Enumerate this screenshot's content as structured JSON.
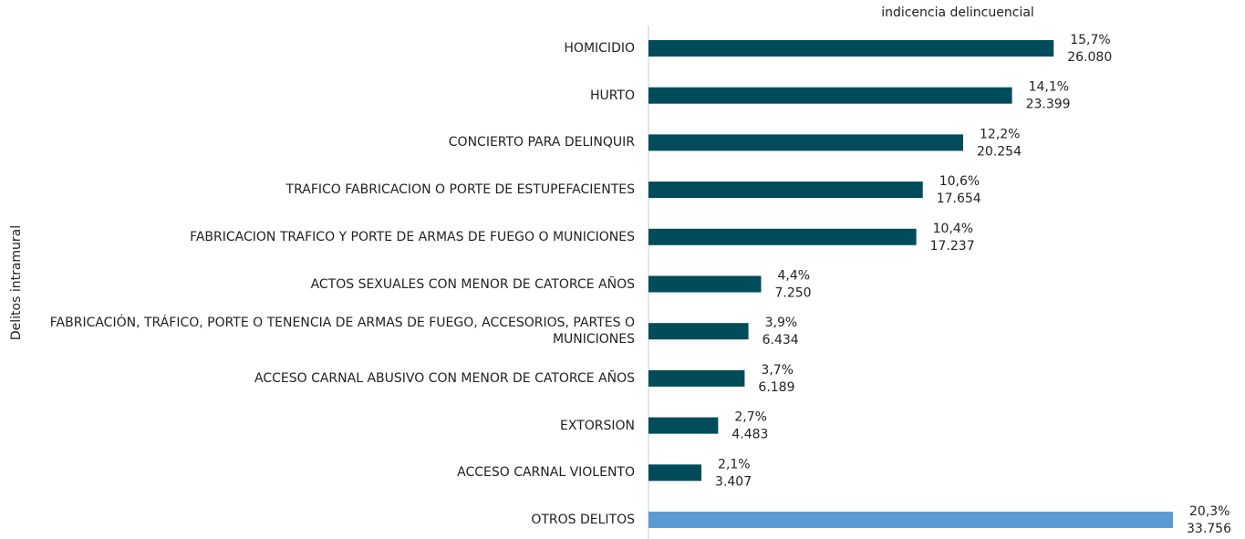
{
  "chart_data": {
    "type": "barh",
    "title": "indicencia delincuencial",
    "y_axis_label": "Delitos intramural",
    "categories": [
      "HOMICIDIO",
      "HURTO",
      "CONCIERTO PARA DELINQUIR",
      "TRAFICO FABRICACION O PORTE DE ESTUPEFACIENTES",
      "FABRICACION TRAFICO Y PORTE DE ARMAS DE FUEGO O MUNICIONES",
      "ACTOS SEXUALES CON MENOR DE CATORCE AÑOS",
      "FABRICACIÓN, TRÁFICO, PORTE O TENENCIA DE ARMAS DE FUEGO, ACCESORIOS, PARTES O MUNICIONES",
      "ACCESO CARNAL ABUSIVO CON MENOR DE CATORCE AÑOS",
      "EXTORSION",
      "ACCESO CARNAL VIOLENTO",
      "OTROS DELITOS"
    ],
    "values": [
      26080,
      23399,
      20254,
      17654,
      17237,
      7250,
      6434,
      6189,
      4483,
      3407,
      33756
    ],
    "value_labels": [
      "26.080",
      "23.399",
      "20.254",
      "17.654",
      "17.237",
      "7.250",
      "6.434",
      "6.189",
      "4.483",
      "3.407",
      "33.756"
    ],
    "shares": [
      15.7,
      14.1,
      12.2,
      10.6,
      10.4,
      4.4,
      3.9,
      3.7,
      2.7,
      2.1,
      20.3
    ],
    "share_labels": [
      "15,7%",
      "14,1%",
      "12,2%",
      "10,6%",
      "10,4%",
      "4,4%",
      "3,9%",
      "3,7%",
      "2,7%",
      "2,1%",
      "20,3%"
    ],
    "colors": [
      "#004c5a",
      "#004c5a",
      "#004c5a",
      "#004c5a",
      "#004c5a",
      "#004c5a",
      "#004c5a",
      "#004c5a",
      "#004c5a",
      "#004c5a",
      "#5b9bd5"
    ]
  }
}
